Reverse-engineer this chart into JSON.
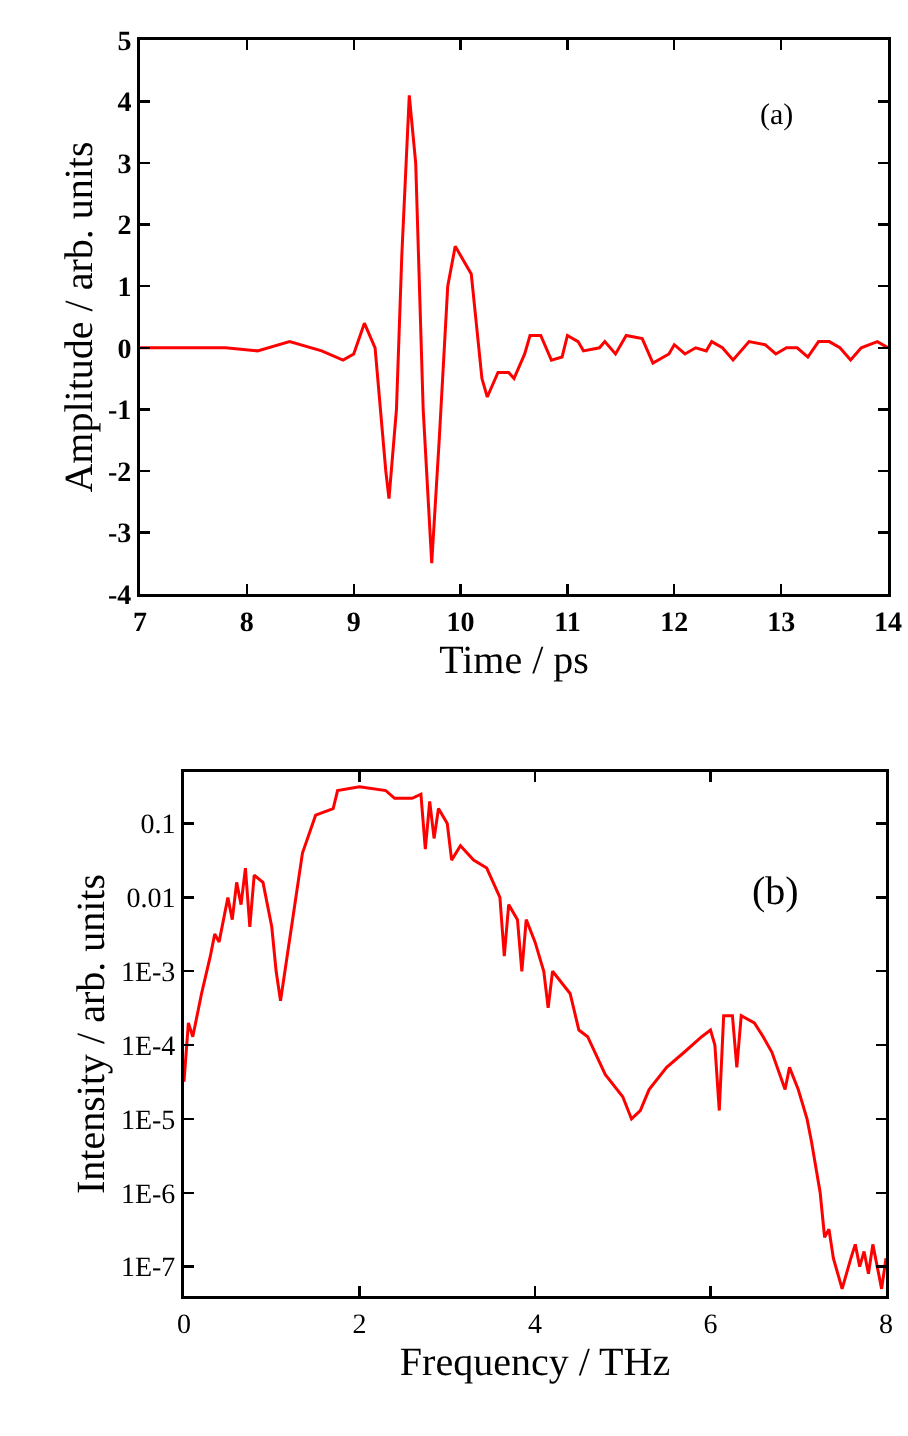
{
  "chart_data": [
    {
      "type": "line",
      "xlabel": "Time / ps",
      "ylabel": "Amplitude / arb. units",
      "annotations": [
        "(a)"
      ],
      "xlim": [
        7,
        14
      ],
      "ylim": [
        -4,
        5
      ],
      "xticks": [
        7,
        8,
        9,
        10,
        11,
        12,
        13,
        14
      ],
      "yticks": [
        -4,
        -3,
        -2,
        -1,
        0,
        1,
        2,
        3,
        4,
        5
      ],
      "grid": false,
      "marker": "none",
      "line_style": "solid",
      "series": [
        {
          "color": "#ff0000",
          "x": [
            7,
            7.8,
            8.1,
            8.4,
            8.7,
            8.9,
            9.0,
            9.1,
            9.2,
            9.3,
            9.33,
            9.4,
            9.45,
            9.52,
            9.58,
            9.65,
            9.73,
            9.8,
            9.88,
            9.95,
            10.05,
            10.1,
            10.2,
            10.25,
            10.35,
            10.45,
            10.5,
            10.6,
            10.65,
            10.75,
            10.85,
            10.95,
            11.0,
            11.1,
            11.15,
            11.3,
            11.35,
            11.45,
            11.55,
            11.7,
            11.8,
            11.95,
            12.0,
            12.1,
            12.2,
            12.3,
            12.35,
            12.45,
            12.55,
            12.7,
            12.85,
            12.95,
            13.05,
            13.15,
            13.25,
            13.35,
            13.45,
            13.55,
            13.65,
            13.75,
            13.9,
            14.0
          ],
          "values": [
            0,
            0,
            -0.05,
            0.1,
            -0.05,
            -0.2,
            -0.1,
            0.4,
            0.0,
            -2.0,
            -2.45,
            -1.0,
            1.5,
            4.1,
            3.0,
            -1.0,
            -3.5,
            -1.5,
            1.0,
            1.65,
            1.35,
            1.2,
            -0.5,
            -0.8,
            -0.4,
            -0.4,
            -0.5,
            -0.1,
            0.2,
            0.2,
            -0.2,
            -0.15,
            0.2,
            0.1,
            -0.05,
            0.0,
            0.1,
            -0.1,
            0.2,
            0.15,
            -0.25,
            -0.1,
            0.05,
            -0.1,
            0.0,
            -0.05,
            0.1,
            0.0,
            -0.2,
            0.1,
            0.05,
            -0.1,
            0.0,
            0.0,
            -0.15,
            0.1,
            0.1,
            0.0,
            -0.2,
            0.0,
            0.1,
            0.0
          ]
        }
      ]
    },
    {
      "type": "line",
      "xlabel": "Frequency / THz",
      "ylabel": "Intensity / arb. units",
      "annotations": [
        "(b)"
      ],
      "log": "y",
      "xlim": [
        0,
        8
      ],
      "ylim": [
        4e-08,
        0.5
      ],
      "xticks": [
        0,
        2,
        4,
        6,
        8
      ],
      "yticks": [
        {
          "value": 0.1,
          "label": "0.1"
        },
        {
          "value": 0.01,
          "label": "0.01"
        },
        {
          "value": 0.001,
          "label": "1E-3"
        },
        {
          "value": 0.0001,
          "label": "1E-4"
        },
        {
          "value": 1e-05,
          "label": "1E-5"
        },
        {
          "value": 1e-06,
          "label": "1E-6"
        },
        {
          "value": 1e-07,
          "label": "1E-7"
        }
      ],
      "grid": false,
      "marker": "none",
      "line_style": "solid",
      "series": [
        {
          "color": "#ff0000",
          "x": [
            0,
            0.05,
            0.1,
            0.2,
            0.3,
            0.35,
            0.4,
            0.5,
            0.55,
            0.6,
            0.65,
            0.7,
            0.75,
            0.8,
            0.9,
            1.0,
            1.05,
            1.1,
            1.15,
            1.25,
            1.35,
            1.5,
            1.7,
            1.75,
            2.0,
            2.3,
            2.4,
            2.6,
            2.7,
            2.75,
            2.8,
            2.85,
            2.9,
            3.0,
            3.05,
            3.15,
            3.3,
            3.45,
            3.6,
            3.65,
            3.7,
            3.8,
            3.85,
            3.9,
            4.0,
            4.1,
            4.15,
            4.2,
            4.4,
            4.5,
            4.6,
            4.8,
            5.0,
            5.1,
            5.2,
            5.3,
            5.5,
            5.7,
            5.9,
            6.0,
            6.05,
            6.1,
            6.15,
            6.25,
            6.3,
            6.35,
            6.5,
            6.6,
            6.7,
            6.85,
            6.9,
            7.0,
            7.1,
            7.15,
            7.25,
            7.3,
            7.35,
            7.4,
            7.5,
            7.6,
            7.65,
            7.7,
            7.75,
            7.8,
            7.85,
            7.9,
            7.95,
            8.0
          ],
          "values": [
            3.2e-05,
            0.0002,
            0.00013,
            0.0005,
            0.0016,
            0.0032,
            0.0025,
            0.01,
            0.005,
            0.016,
            0.008,
            0.025,
            0.004,
            0.02,
            0.016,
            0.004,
            0.001,
            0.0004,
            0.001,
            0.0063,
            0.04,
            0.13,
            0.16,
            0.28,
            0.316,
            0.28,
            0.22,
            0.22,
            0.25,
            0.045,
            0.2,
            0.063,
            0.16,
            0.1,
            0.032,
            0.05,
            0.032,
            0.025,
            0.01,
            0.0016,
            0.008,
            0.005,
            0.001,
            0.005,
            0.0025,
            0.001,
            0.00032,
            0.001,
            0.0005,
            0.00016,
            0.00013,
            4e-05,
            2e-05,
            1e-05,
            1.3e-05,
            2.5e-05,
            5e-05,
            8e-05,
            0.00013,
            0.00016,
            0.0001,
            1.3e-05,
            0.00025,
            0.00025,
            5e-05,
            0.00025,
            0.0002,
            0.00013,
            8e-05,
            2.5e-05,
            5e-05,
            2.5e-05,
            1e-05,
            5e-06,
            1e-06,
            2.5e-07,
            3.2e-07,
            1.3e-07,
            5e-08,
            1.3e-07,
            2e-07,
            1e-07,
            1.6e-07,
            8e-08,
            2e-07,
            1e-07,
            5e-08,
            1.3e-07
          ]
        }
      ]
    }
  ]
}
